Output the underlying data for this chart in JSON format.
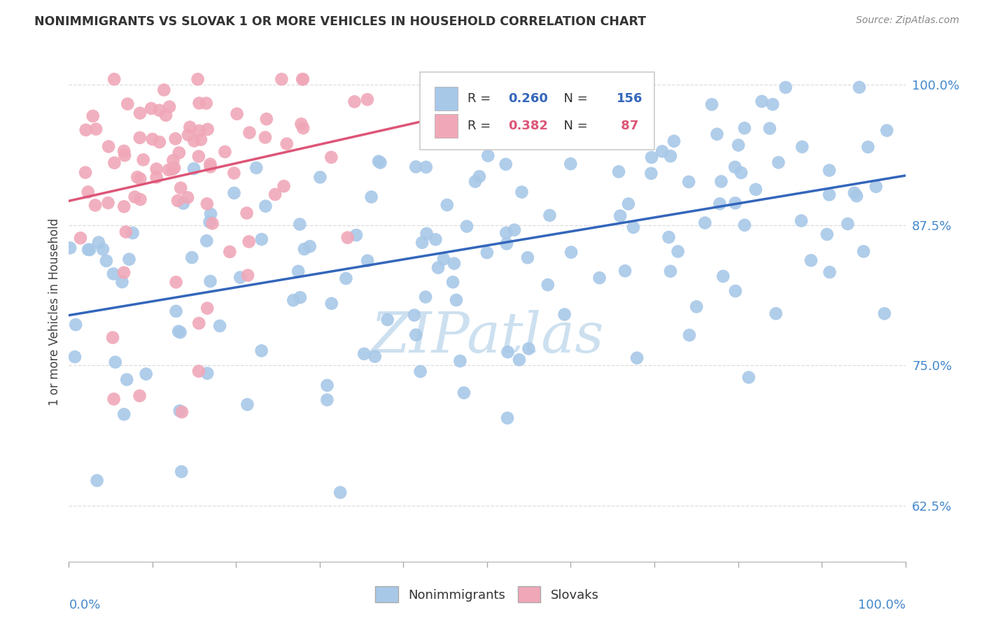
{
  "title": "NONIMMIGRANTS VS SLOVAK 1 OR MORE VEHICLES IN HOUSEHOLD CORRELATION CHART",
  "source": "Source: ZipAtlas.com",
  "ylabel": "1 or more Vehicles in Household",
  "legend_blue_R": "0.260",
  "legend_blue_N": "156",
  "legend_pink_R": "0.382",
  "legend_pink_N": " 87",
  "blue_color": "#a8c8e8",
  "pink_color": "#f0a8b8",
  "blue_line_color": "#3366bb",
  "pink_line_color": "#dd5577",
  "background_color": "#ffffff",
  "watermark_color": "#cce0f0",
  "xmin": 0.0,
  "xmax": 1.0,
  "ymin": 0.575,
  "ymax": 1.02,
  "yticks": [
    0.625,
    0.75,
    0.875,
    1.0
  ],
  "ytick_labels": [
    "62.5%",
    "75.0%",
    "87.5%",
    "100.0%"
  ],
  "xtick_positions": [
    0.0,
    0.1,
    0.2,
    0.3,
    0.4,
    0.5,
    0.6,
    0.7,
    0.8,
    0.9,
    1.0
  ],
  "blue_line_start_y": 0.818,
  "blue_line_end_y": 0.93,
  "pink_line_start_x": 0.0,
  "pink_line_start_y": 0.928,
  "pink_line_end_x": 0.38,
  "pink_line_end_y": 0.978
}
